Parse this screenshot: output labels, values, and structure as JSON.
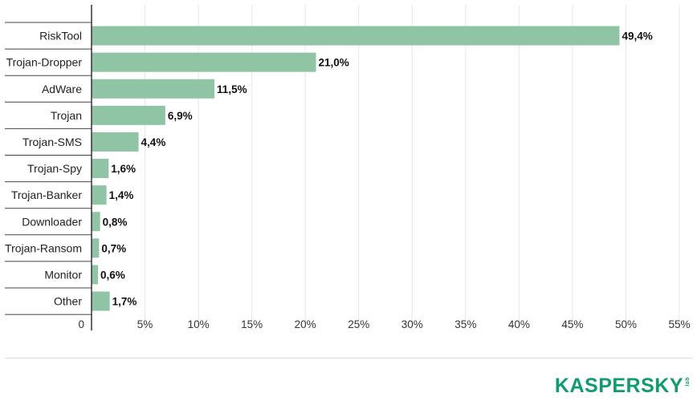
{
  "chart_data": {
    "type": "bar",
    "orientation": "horizontal",
    "categories": [
      "RiskTool",
      "Trojan-Dropper",
      "AdWare",
      "Trojan",
      "Trojan-SMS",
      "Trojan-Spy",
      "Trojan-Banker",
      "Downloader",
      "Trojan-Ransom",
      "Monitor",
      "Other"
    ],
    "values": [
      49.4,
      21.0,
      11.5,
      6.9,
      4.4,
      1.6,
      1.4,
      0.8,
      0.7,
      0.6,
      1.7
    ],
    "value_labels": [
      "49,4%",
      "21,0%",
      "11,5%",
      "6,9%",
      "4,4%",
      "1,6%",
      "1,4%",
      "0,8%",
      "0,7%",
      "0,6%",
      "1,7%"
    ],
    "xlim": [
      0,
      55
    ],
    "x_ticks": [
      0,
      5,
      10,
      15,
      20,
      25,
      30,
      35,
      40,
      45,
      50,
      55
    ],
    "x_tick_labels": [
      "0",
      "5%",
      "10%",
      "15%",
      "20%",
      "25%",
      "30%",
      "35%",
      "40%",
      "45%",
      "50%",
      "55%"
    ],
    "grid": true,
    "bar_color": "#8fc4a5",
    "title": "",
    "xlabel": "",
    "ylabel": ""
  },
  "branding": {
    "logo_text": "KASPERSKY",
    "logo_sub": "lab",
    "logo_color": "#0f9d6e"
  }
}
